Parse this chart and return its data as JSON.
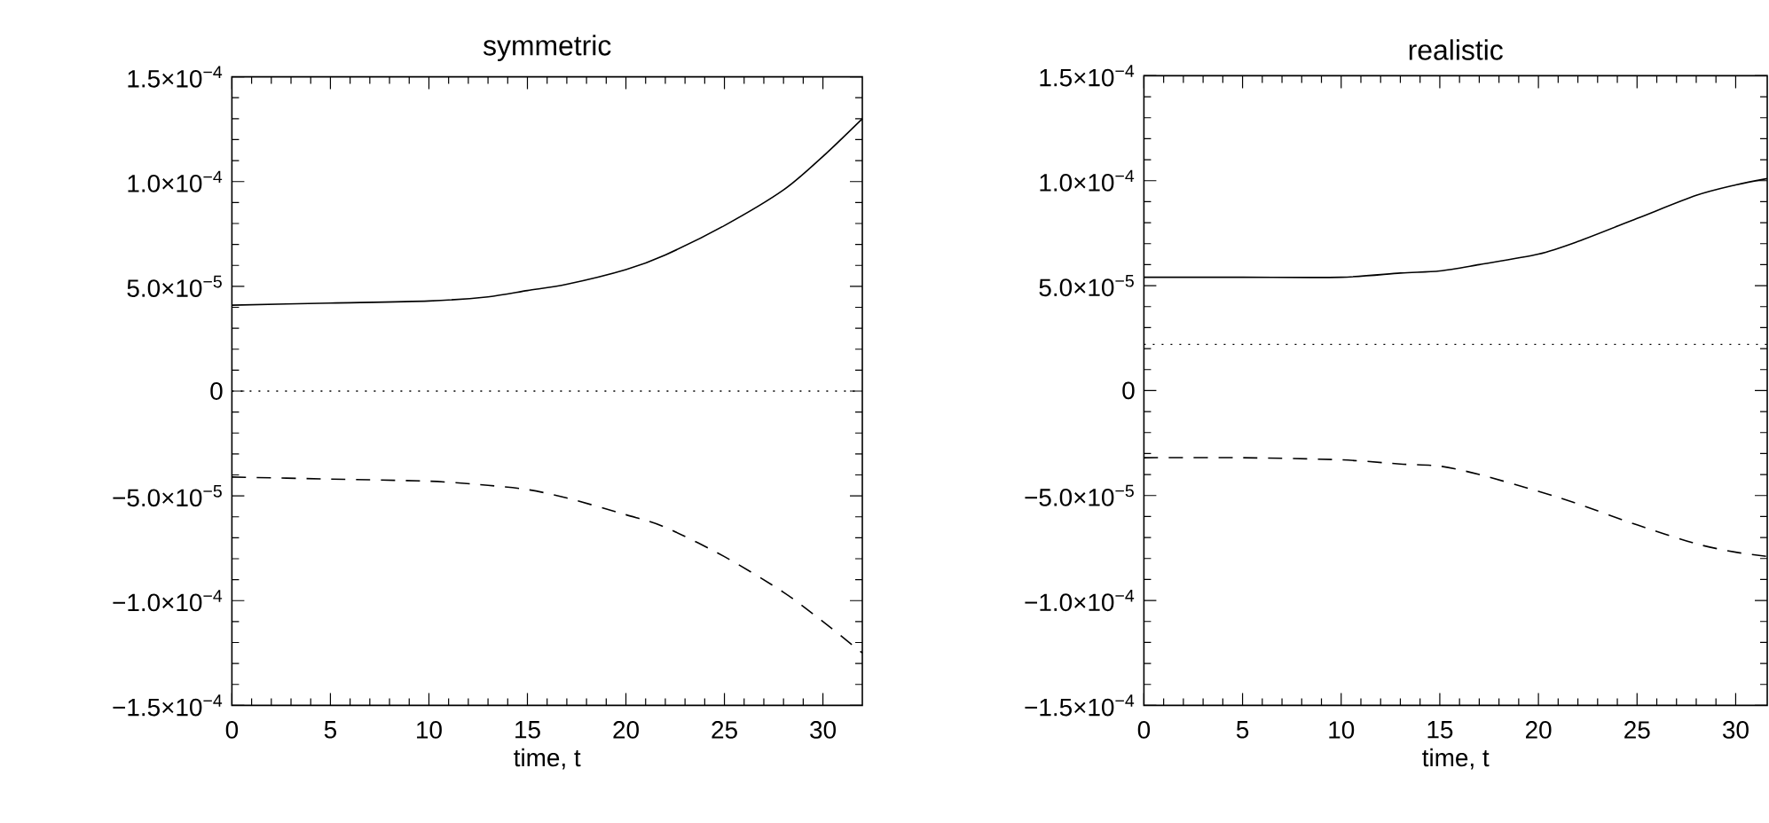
{
  "chart_data": [
    {
      "type": "line",
      "title": "symmetric",
      "xlabel": "time, t",
      "x": [
        0,
        5,
        10,
        13,
        15,
        17,
        20,
        22,
        25,
        28,
        30,
        32
      ],
      "series": [
        {
          "color": "#000000",
          "line_style": "solid",
          "values": [
            4.1e-05,
            4.2e-05,
            4.3e-05,
            4.5e-05,
            4.8e-05,
            5.1e-05,
            5.8e-05,
            6.5e-05,
            7.9e-05,
            9.6e-05,
            0.000112,
            0.00013
          ]
        },
        {
          "color": "#000000",
          "line_style": "dashed",
          "values": [
            -4.1e-05,
            -4.2e-05,
            -4.3e-05,
            -4.5e-05,
            -4.7e-05,
            -5.1e-05,
            -5.9e-05,
            -6.5e-05,
            -7.9e-05,
            -9.6e-05,
            -0.00011,
            -0.000125
          ]
        }
      ],
      "ref_lines": [
        {
          "axis": "y",
          "value": 0,
          "color": "#000000",
          "line_style": "dotted"
        }
      ],
      "xlim": [
        0,
        32
      ],
      "ylim": [
        -0.00015,
        0.00015
      ],
      "xticks": [
        0,
        5,
        10,
        15,
        20,
        25,
        30
      ],
      "yticks": [
        {
          "value": -0.00015,
          "label": "−1.5×10$^{−4}$"
        },
        {
          "value": -0.0001,
          "label": "−1.0×10$^{−4}$"
        },
        {
          "value": -5e-05,
          "label": "−5.0×10$^{−5}$"
        },
        0,
        {
          "value": 5e-05,
          "label": "5.0×10$^{−5}$"
        },
        {
          "value": 0.0001,
          "label": "1.0×10$^{−4}$"
        },
        {
          "value": 0.00015,
          "label": "1.5×10$^{−4}$"
        }
      ]
    },
    {
      "type": "line",
      "title": "realistic",
      "xlabel": "time, t",
      "x": [
        0,
        5,
        10,
        13,
        15,
        17,
        20,
        22,
        25,
        28,
        30,
        31.6
      ],
      "series": [
        {
          "color": "#000000",
          "line_style": "solid",
          "values": [
            5.4e-05,
            5.4e-05,
            5.4e-05,
            5.6e-05,
            5.7e-05,
            6e-05,
            6.5e-05,
            7.1e-05,
            8.2e-05,
            9.3e-05,
            9.8e-05,
            0.000101
          ]
        },
        {
          "color": "#000000",
          "line_style": "dashed",
          "values": [
            -3.2e-05,
            -3.2e-05,
            -3.3e-05,
            -3.5e-05,
            -3.6e-05,
            -4e-05,
            -4.8e-05,
            -5.4e-05,
            -6.4e-05,
            -7.3e-05,
            -7.7e-05,
            -7.9e-05
          ]
        }
      ],
      "ref_lines": [
        {
          "axis": "y",
          "value": 2.2e-05,
          "color": "#000000",
          "line_style": "dotted"
        }
      ],
      "xlim": [
        0,
        31.6
      ],
      "ylim": [
        -0.00015,
        0.00015
      ],
      "xticks": [
        0,
        5,
        10,
        15,
        20,
        25,
        30
      ],
      "yticks": [
        {
          "value": -0.00015,
          "label": "−1.5×10$^{−4}$"
        },
        {
          "value": -0.0001,
          "label": "−1.0×10$^{−4}$"
        },
        {
          "value": -5e-05,
          "label": "−5.0×10$^{−5}$"
        },
        0,
        {
          "value": 5e-05,
          "label": "5.0×10$^{−5}$"
        },
        {
          "value": 0.0001,
          "label": "1.0×10$^{−4}$"
        },
        {
          "value": 0.00015,
          "label": "1.5×10$^{−4}$"
        }
      ]
    }
  ]
}
